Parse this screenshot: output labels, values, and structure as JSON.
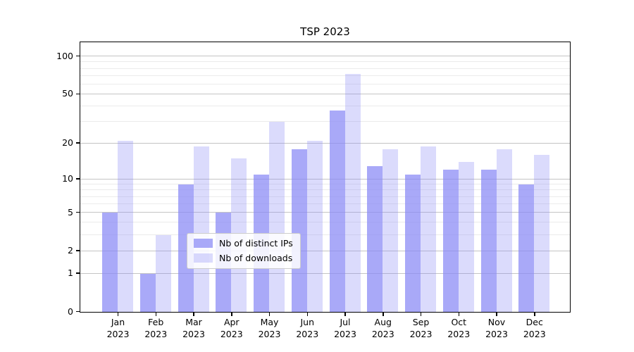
{
  "chart_data": {
    "type": "bar",
    "title": "TSP 2023",
    "months": [
      "Jan",
      "Feb",
      "Mar",
      "Apr",
      "May",
      "Jun",
      "Jul",
      "Aug",
      "Sep",
      "Oct",
      "Nov",
      "Dec"
    ],
    "year": "2023",
    "series": [
      {
        "name": "Nb of distinct IPs",
        "color": "rgba(136,136,245,0.72)",
        "values": [
          5,
          1,
          9,
          5,
          11,
          18,
          37,
          13,
          11,
          12,
          12,
          9
        ]
      },
      {
        "name": "Nb of downloads",
        "color": "rgba(136,136,245,0.30)",
        "values": [
          21,
          3,
          19,
          15,
          30,
          21,
          73,
          18,
          19,
          14,
          18,
          16
        ]
      }
    ],
    "y_axis": {
      "scale": "log1p",
      "ticks": [
        0,
        1,
        2,
        5,
        10,
        20,
        50,
        100
      ],
      "minor_gridlines": [
        3,
        4,
        6,
        7,
        8,
        9,
        30,
        40,
        60,
        70,
        80,
        90
      ],
      "max": 128
    },
    "grid": true,
    "legend_position": "lower center-right",
    "colors": {
      "major_grid": "#c4c4c4",
      "minor_grid": "#ebebeb",
      "axis": "#000000",
      "background": "#ffffff"
    }
  }
}
